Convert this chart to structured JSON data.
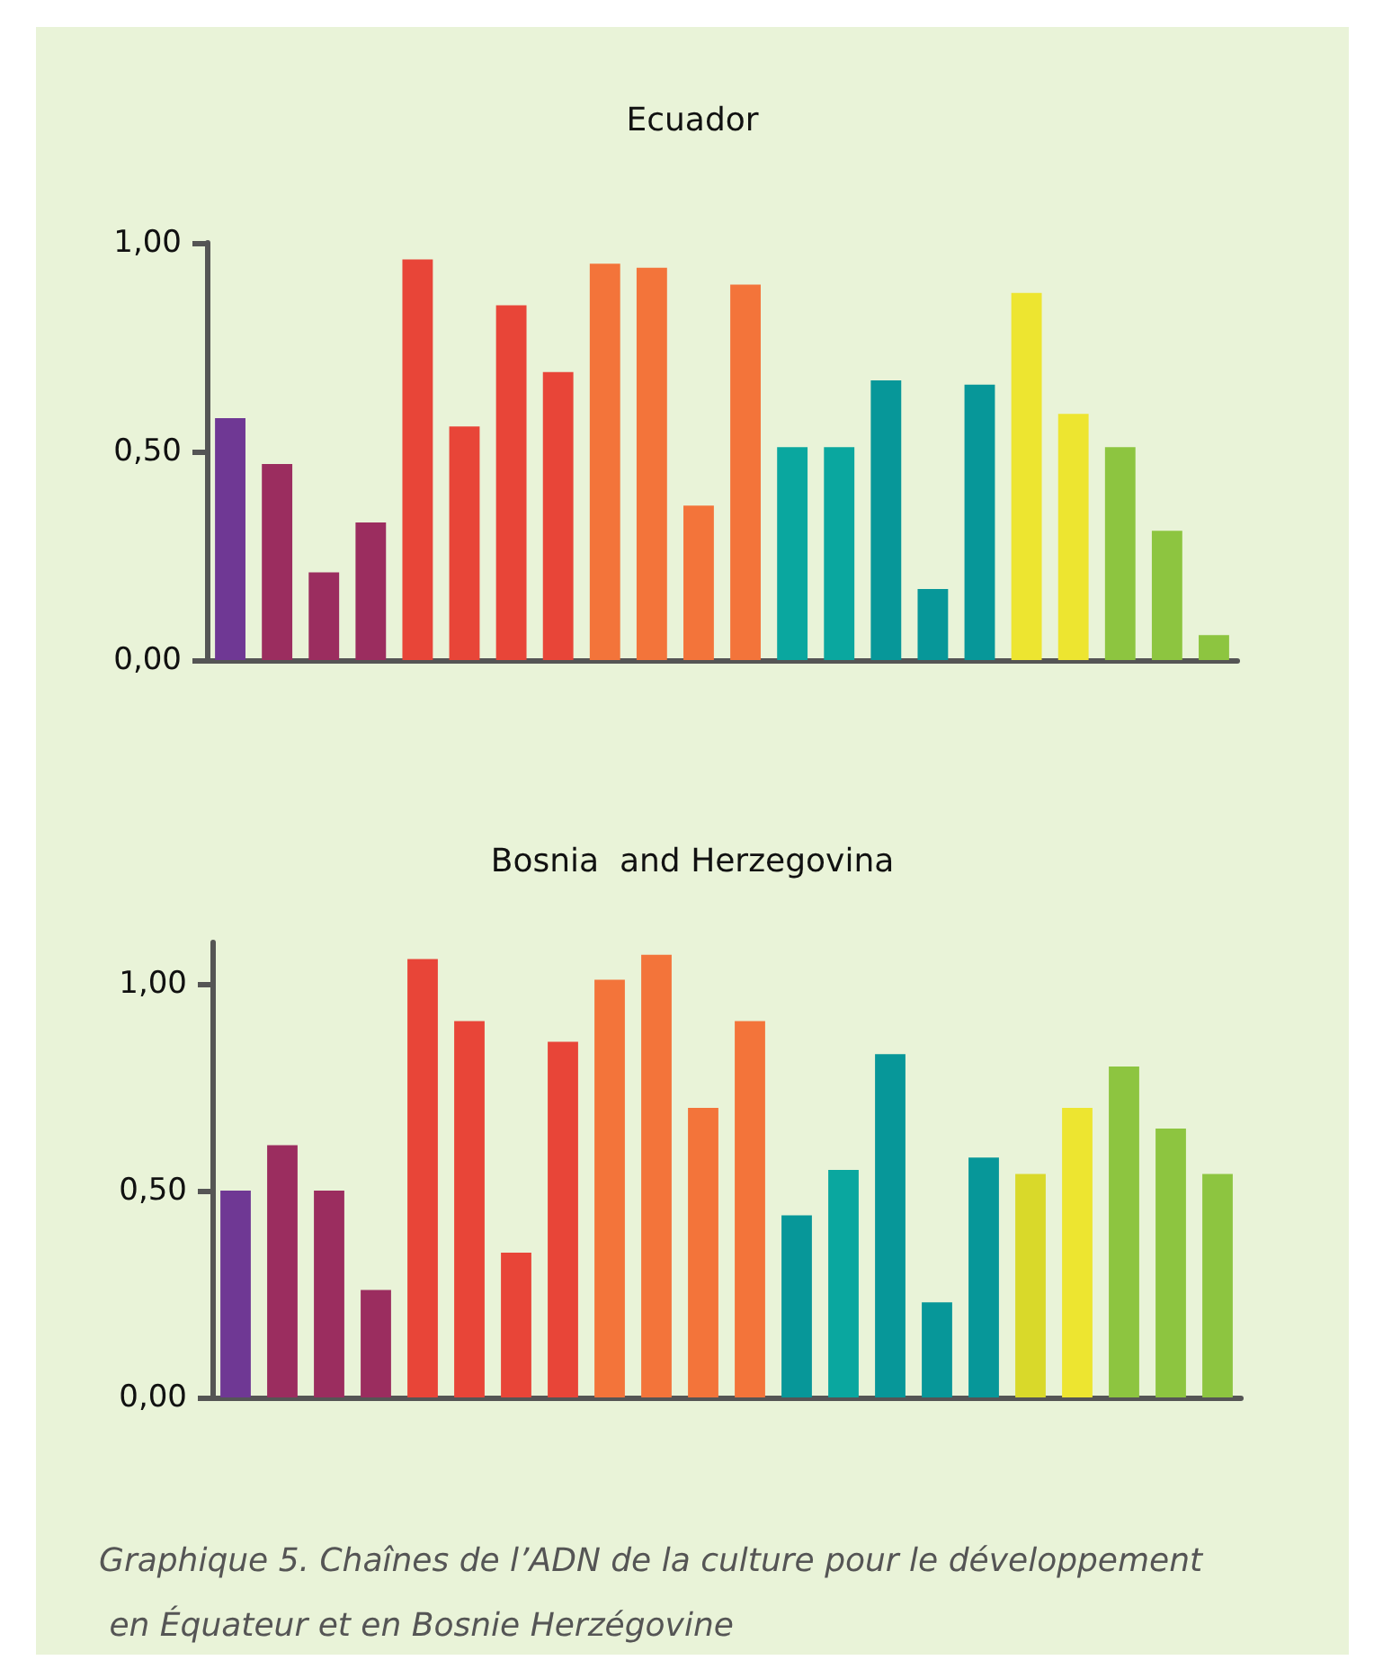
{
  "chart_data": [
    {
      "type": "bar",
      "title": "Ecuador",
      "categories": [
        null,
        null,
        null,
        null,
        null,
        null,
        null,
        null,
        null,
        null,
        null,
        null,
        null,
        null,
        null,
        null,
        null,
        null,
        null,
        null,
        null,
        null
      ],
      "values": [
        0.58,
        0.47,
        0.21,
        0.33,
        0.96,
        0.56,
        0.85,
        0.69,
        0.95,
        0.94,
        0.37,
        0.9,
        0.51,
        0.51,
        0.67,
        0.17,
        0.66,
        0.88,
        0.59,
        0.51,
        0.31,
        0.06
      ],
      "colors": [
        "#6f3894",
        "#9b2d5f",
        "#9b2d5f",
        "#9b2d5f",
        "#e84538",
        "#e84538",
        "#e84538",
        "#e84538",
        "#f3743a",
        "#f3743a",
        "#f3743a",
        "#f3743a",
        "#0aa79f",
        "#0aa79f",
        "#079799",
        "#079799",
        "#079799",
        "#ede530",
        "#ede530",
        "#8dc540",
        "#8dc540",
        "#8dc540"
      ],
      "ylim": [
        0,
        1
      ],
      "yticks": [
        {
          "value": 0,
          "label": "0,00"
        },
        {
          "value": 0.5,
          "label": "0,50"
        },
        {
          "value": 1,
          "label": "1,00"
        }
      ],
      "tick_labels": "y",
      "grid": false
    },
    {
      "type": "bar",
      "title": "Bosnia  and Herzegovina",
      "categories": [
        null,
        null,
        null,
        null,
        null,
        null,
        null,
        null,
        null,
        null,
        null,
        null,
        null,
        null,
        null,
        null,
        null,
        null,
        null,
        null,
        null,
        null
      ],
      "values": [
        0.5,
        0.61,
        0.5,
        0.26,
        1.06,
        0.91,
        0.35,
        0.86,
        1.01,
        1.07,
        0.7,
        0.91,
        0.44,
        0.55,
        0.83,
        0.23,
        0.58,
        0.54,
        0.7,
        0.8,
        0.65,
        0.54
      ],
      "colors": [
        "#6f3894",
        "#9b2d5f",
        "#9b2d5f",
        "#9b2d5f",
        "#e84538",
        "#e84538",
        "#e84538",
        "#e84538",
        "#f3743a",
        "#f3743a",
        "#f3743a",
        "#f3743a",
        "#079799",
        "#0aa79f",
        "#079799",
        "#079799",
        "#079799",
        "#d9d92a",
        "#ede530",
        "#8dc540",
        "#8dc540",
        "#8dc540"
      ],
      "ylim": [
        0,
        1.1
      ],
      "yticks": [
        {
          "value": 0,
          "label": "0,00"
        },
        {
          "value": 0.5,
          "label": "0,50"
        },
        {
          "value": 1,
          "label": "1,00"
        }
      ],
      "tick_labels": "y",
      "grid": false,
      "annotations": [
        "Graphique 5. Chaînes de l’ADN de la culture pour le développement en Équateur et en Bosnie Herzégovine"
      ]
    }
  ]
}
